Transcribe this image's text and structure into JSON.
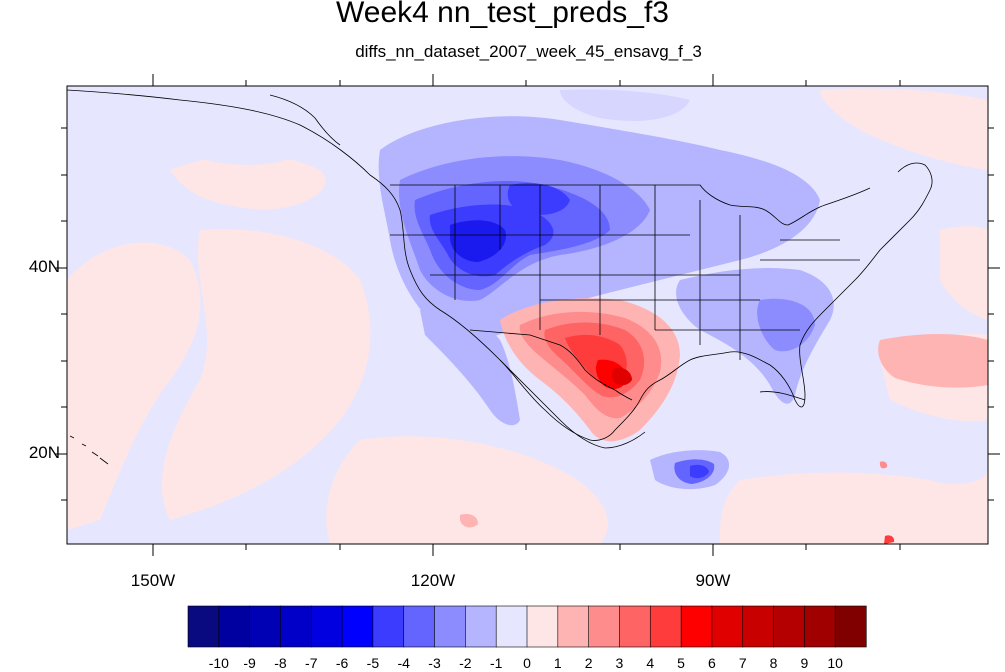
{
  "map": {
    "title": "Week4 nn_test_preds_f3",
    "subtitle": "diffs_nn_dataset_2007_week_45_ensavg_f_3",
    "lat_labels": [
      "40N",
      "20N"
    ],
    "lon_labels": [
      "150W",
      "120W",
      "90W"
    ],
    "colorbar": {
      "labels": [
        "-10",
        "-9",
        "-8",
        "-7",
        "-6",
        "-5",
        "-4",
        "-3",
        "-2",
        "-1",
        "0",
        "1",
        "2",
        "3",
        "4",
        "5",
        "6",
        "7",
        "8",
        "9",
        "10"
      ],
      "colors": [
        "#0a0a80",
        "#0000a0",
        "#0000b4",
        "#0000c8",
        "#0000e0",
        "#0000ff",
        "#3c3cff",
        "#6464ff",
        "#8c8cff",
        "#b4b4ff",
        "#e6e6ff",
        "#ffe6e6",
        "#ffb4b4",
        "#ff8c8c",
        "#ff6464",
        "#ff3c3c",
        "#ff0000",
        "#e00000",
        "#c80000",
        "#b40000",
        "#a00000",
        "#800000"
      ]
    },
    "colors": {
      "background_negative": "#e6e6ff",
      "background_positive": "#ffe6e6"
    }
  }
}
